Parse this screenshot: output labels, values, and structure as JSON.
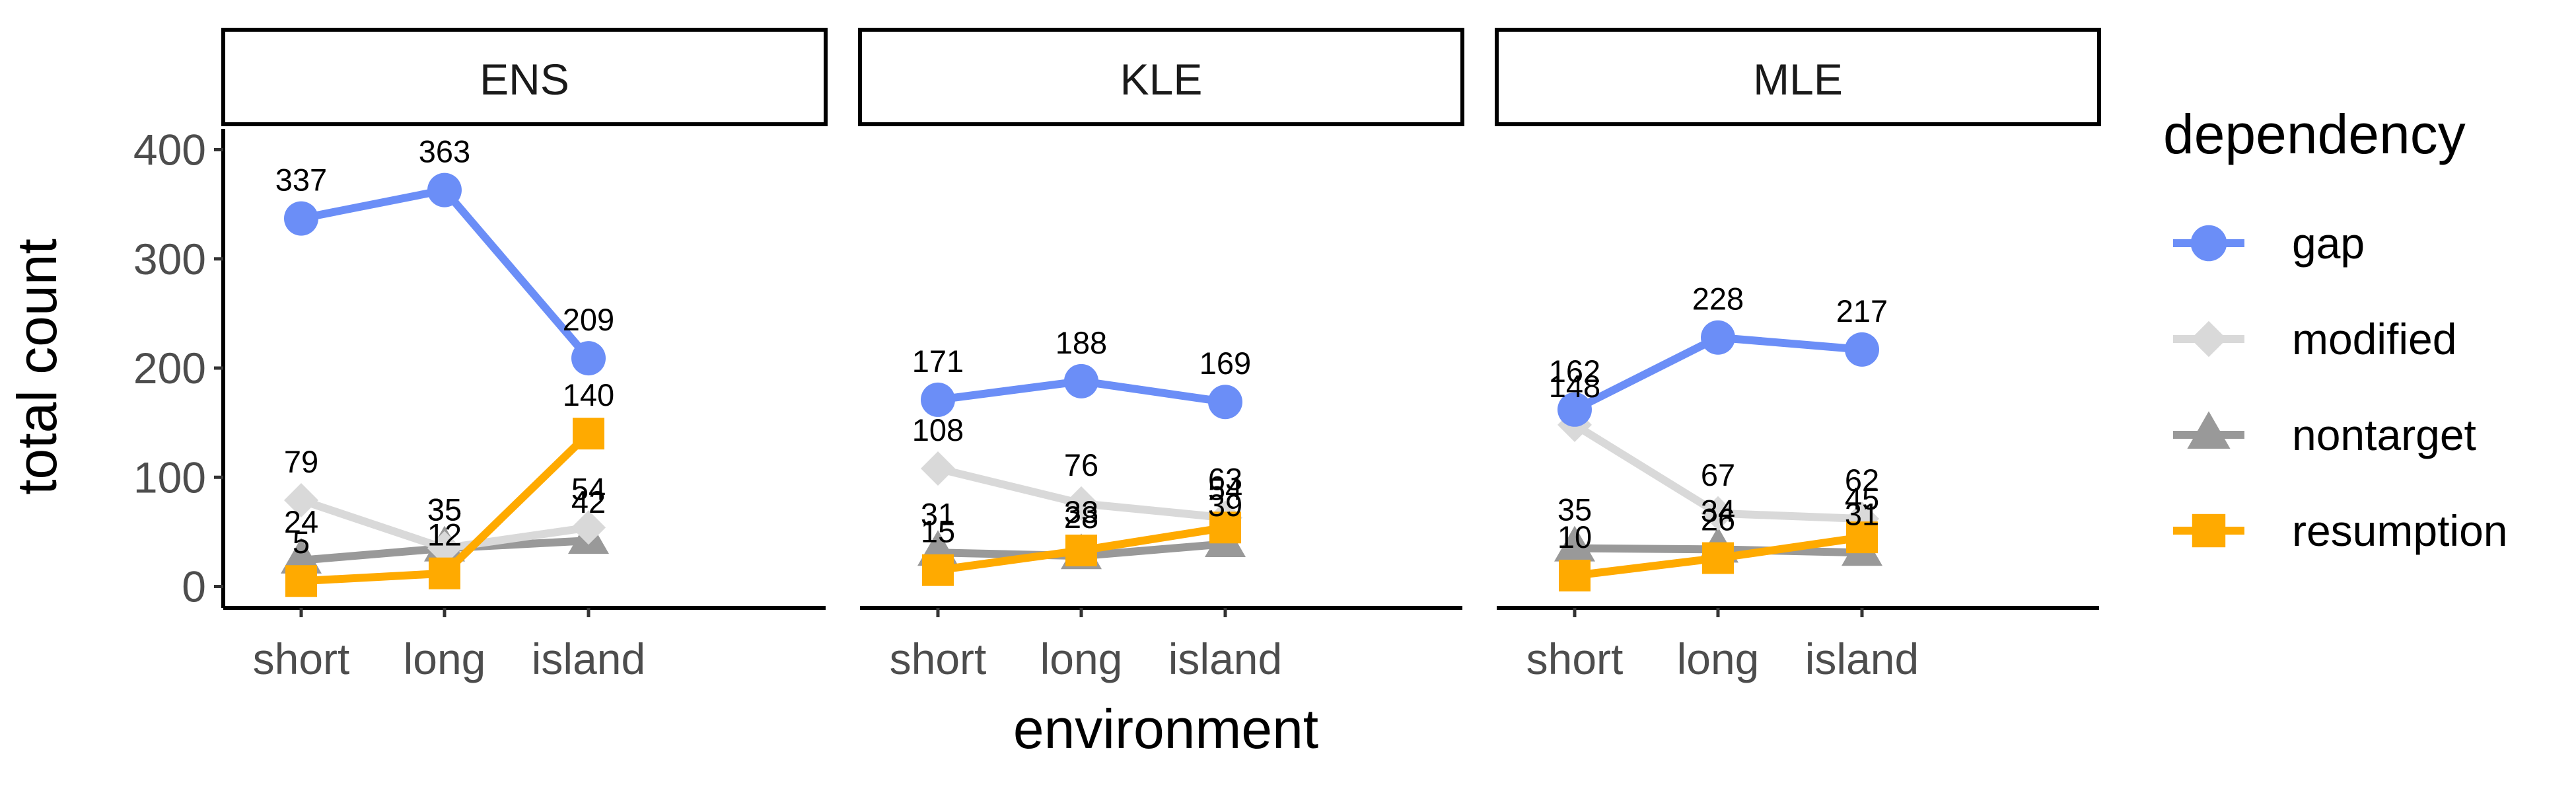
{
  "chart_data": {
    "type": "line",
    "facet_var": "panel",
    "panels": [
      "ENS",
      "KLE",
      "MLE"
    ],
    "categories": [
      "short",
      "long",
      "island"
    ],
    "xlabel": "environment",
    "ylabel": "total count",
    "ylim": [
      0,
      400
    ],
    "yticks": [
      0,
      100,
      200,
      300,
      400
    ],
    "legend": {
      "title": "dependency",
      "position": "right"
    },
    "grid": false,
    "series": [
      {
        "name": "gap",
        "color": "#6B8EF7",
        "marker": "circle",
        "values": {
          "ENS": [
            337,
            363,
            209
          ],
          "KLE": [
            171,
            188,
            169
          ],
          "MLE": [
            162,
            228,
            217
          ]
        }
      },
      {
        "name": "modified",
        "color": "#D9D9D9",
        "marker": "diamond",
        "values": {
          "ENS": [
            79,
            35,
            54
          ],
          "KLE": [
            108,
            76,
            63
          ],
          "MLE": [
            148,
            67,
            62
          ]
        }
      },
      {
        "name": "nontarget",
        "color": "#999999",
        "marker": "triangle",
        "values": {
          "ENS": [
            24,
            35,
            42
          ],
          "KLE": [
            31,
            28,
            39
          ],
          "MLE": [
            35,
            34,
            31
          ]
        }
      },
      {
        "name": "resumption",
        "color": "#FFAA00",
        "marker": "square",
        "values": {
          "ENS": [
            5,
            12,
            140
          ],
          "KLE": [
            15,
            33,
            54
          ],
          "MLE": [
            10,
            26,
            45
          ]
        }
      }
    ]
  }
}
